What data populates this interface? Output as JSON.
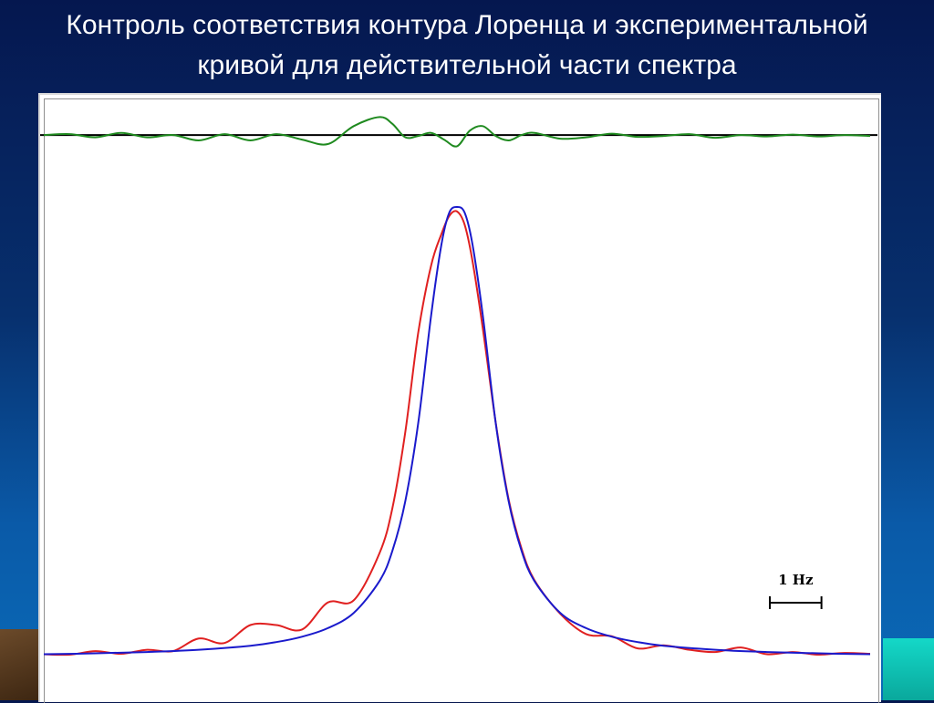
{
  "slide": {
    "title_line1": "Контроль соответствия контура Лоренца и экспериментальной",
    "title_line2": "кривой для действительной части спектра"
  },
  "chart_data": {
    "type": "line",
    "title": "",
    "xlabel": "",
    "ylabel": "",
    "grid": false,
    "legend": "none",
    "xlim": [
      -8,
      8
    ],
    "ylim": [
      0,
      1.3
    ],
    "scale_bar": {
      "label": "1 Hz",
      "length_hz": 1
    },
    "residual_baseline": 1.16,
    "series": [
      {
        "role": "lorentz-fit",
        "color": "#1a1acc",
        "x": [
          -8,
          -7,
          -6,
          -5,
          -4,
          -3.5,
          -3,
          -2.5,
          -2,
          -1.5,
          -1.25,
          -1,
          -0.75,
          -0.5,
          -0.3,
          -0.15,
          0,
          0.15,
          0.3,
          0.5,
          0.75,
          1,
          1.25,
          1.5,
          2,
          2.5,
          3,
          3.5,
          4,
          5,
          6,
          7,
          8
        ],
        "y": [
          0.005,
          0.007,
          0.01,
          0.015,
          0.024,
          0.032,
          0.044,
          0.063,
          0.097,
          0.168,
          0.235,
          0.346,
          0.519,
          0.759,
          0.917,
          0.987,
          1.0,
          0.987,
          0.917,
          0.759,
          0.519,
          0.346,
          0.235,
          0.168,
          0.097,
          0.063,
          0.044,
          0.032,
          0.024,
          0.015,
          0.01,
          0.007,
          0.005
        ]
      },
      {
        "role": "experimental",
        "color": "#e02020",
        "x": [
          -8,
          -7.5,
          -7,
          -6.5,
          -6,
          -5.5,
          -5,
          -4.5,
          -4,
          -3.5,
          -3,
          -2.5,
          -2,
          -1.5,
          -1.25,
          -1,
          -0.75,
          -0.5,
          -0.3,
          -0.15,
          0,
          0.15,
          0.3,
          0.5,
          0.75,
          1,
          1.25,
          1.5,
          2,
          2.5,
          3,
          3.5,
          4,
          4.5,
          5,
          5.5,
          6,
          6.5,
          7,
          7.5,
          8
        ],
        "y": [
          0.005,
          0.004,
          0.012,
          0.006,
          0.015,
          0.012,
          0.04,
          0.03,
          0.07,
          0.07,
          0.06,
          0.12,
          0.125,
          0.23,
          0.33,
          0.5,
          0.72,
          0.87,
          0.94,
          0.98,
          0.99,
          0.96,
          0.88,
          0.73,
          0.52,
          0.35,
          0.24,
          0.17,
          0.095,
          0.05,
          0.045,
          0.018,
          0.025,
          0.015,
          0.01,
          0.02,
          0.005,
          0.01,
          0.004,
          0.008,
          0.006
        ]
      },
      {
        "role": "residual",
        "color": "#1f8a1f",
        "x": [
          -8,
          -7.5,
          -7,
          -6.5,
          -6,
          -5.5,
          -5,
          -4.5,
          -4,
          -3.5,
          -3,
          -2.5,
          -2,
          -1.5,
          -1.25,
          -1,
          -0.75,
          -0.5,
          -0.25,
          0,
          0.25,
          0.5,
          0.75,
          1,
          1.25,
          1.5,
          2,
          2.5,
          3,
          3.5,
          4,
          4.5,
          5,
          5.5,
          6,
          6.5,
          7,
          7.5,
          8
        ],
        "y": [
          1.16,
          1.162,
          1.155,
          1.165,
          1.155,
          1.16,
          1.148,
          1.162,
          1.148,
          1.162,
          1.15,
          1.14,
          1.18,
          1.2,
          1.185,
          1.155,
          1.158,
          1.165,
          1.15,
          1.135,
          1.17,
          1.18,
          1.158,
          1.148,
          1.16,
          1.165,
          1.152,
          1.155,
          1.163,
          1.156,
          1.158,
          1.162,
          1.154,
          1.16,
          1.157,
          1.161,
          1.157,
          1.16,
          1.158
        ]
      }
    ]
  }
}
